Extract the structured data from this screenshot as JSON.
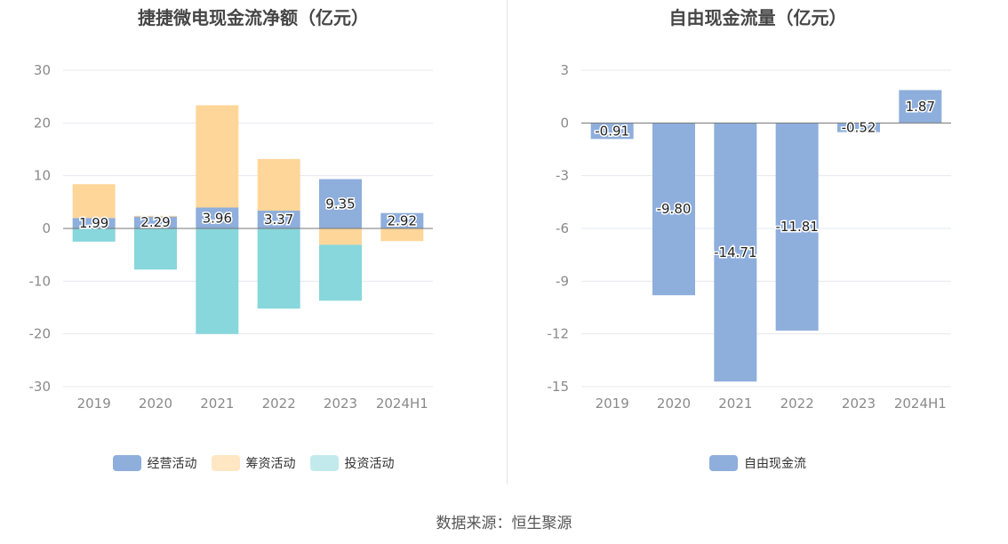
{
  "chart_data": [
    {
      "type": "bar",
      "stacked": true,
      "title": "捷捷微电现金流净额（亿元）",
      "categories": [
        "2019",
        "2020",
        "2021",
        "2022",
        "2023",
        "2024H1"
      ],
      "ylim": [
        -30,
        30
      ],
      "yticks": [
        "30",
        "20",
        "10",
        "0",
        "-10",
        "-20",
        "-30"
      ],
      "series": [
        {
          "name": "经营活动",
          "color": "#8eaedc",
          "values": [
            1.99,
            2.29,
            3.96,
            3.37,
            9.35,
            2.92
          ],
          "labels": [
            "1.99",
            "2.29",
            "3.96",
            "3.37",
            "9.35",
            "2.92"
          ]
        },
        {
          "name": "筹资活动",
          "color": "#ffd699",
          "values": [
            6.4,
            0.1,
            19.4,
            9.8,
            -3.1,
            -2.4
          ]
        },
        {
          "name": "投资活动",
          "color": "#87d7dc",
          "values": [
            -2.5,
            -7.8,
            -20.0,
            -15.2,
            -10.6,
            0
          ]
        }
      ],
      "legend": [
        {
          "name": "经营活动",
          "color": "#8eaedc"
        },
        {
          "name": "筹资活动",
          "color": "#ffe7c4"
        },
        {
          "name": "投资活动",
          "color": "#c2eaec"
        }
      ]
    },
    {
      "type": "bar",
      "title": "自由现金流量（亿元）",
      "categories": [
        "2019",
        "2020",
        "2021",
        "2022",
        "2023",
        "2024H1"
      ],
      "ylim": [
        -15,
        3
      ],
      "yticks": [
        "3",
        "0",
        "-3",
        "-6",
        "-9",
        "-12",
        "-15"
      ],
      "series": [
        {
          "name": "自由现金流",
          "color": "#8eaedc",
          "values": [
            -0.91,
            -9.8,
            -14.71,
            -11.81,
            -0.52,
            1.87
          ],
          "labels": [
            "-0.91",
            "-9.80",
            "-14.71",
            "-11.81",
            "-0.52",
            "1.87"
          ]
        }
      ],
      "legend": [
        {
          "name": "自由现金流",
          "color": "#8eaedc"
        }
      ]
    }
  ],
  "source": "数据来源：恒生聚源"
}
